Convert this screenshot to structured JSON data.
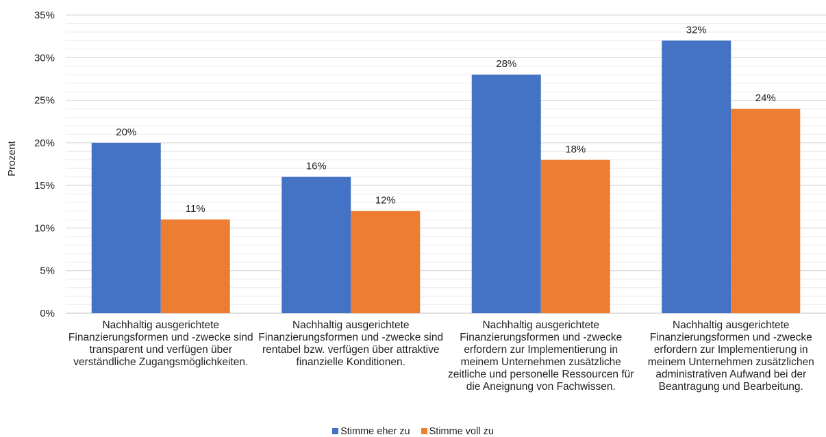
{
  "colors": {
    "series1": "#4472C4",
    "series2": "#ED7D31",
    "grid_major": "#d0d0d0",
    "grid_minor": "#ececec",
    "axis": "#bfbfbf"
  },
  "chart_data": {
    "type": "bar",
    "ylabel": "Prozent",
    "ylim": [
      0,
      35
    ],
    "yticks": [
      "0%",
      "5%",
      "10%",
      "15%",
      "20%",
      "25%",
      "30%",
      "35%"
    ],
    "grid": true,
    "legend_position": "bottom",
    "categories": [
      "Nachhaltig ausgerichtete Finanzierungsformen und -zwecke sind transparent und verfügen über verständliche Zugangsmöglichkeiten.",
      "Nachhaltig ausgerichtete Finanzierungsformen und -zwecke sind rentabel bzw. verfügen über attraktive finanzielle Konditionen.",
      "Nachhaltig ausgerichtete Finanzierungsformen und -zwecke erfordern zur Implementierung in meinem Unternehmen zusätzliche zeitliche und personelle Ressourcen für die Aneignung von Fachwissen.",
      "Nachhaltig ausgerichtete Finanzierungsformen und -zwecke erfordern zur Implementierung in meinem Unternehmen zusätzlichen administrativen Aufwand bei der Beantragung und Bearbeitung."
    ],
    "series": [
      {
        "name": "Stimme eher zu",
        "values": [
          20,
          16,
          28,
          32
        ],
        "labels": [
          "20%",
          "16%",
          "28%",
          "32%"
        ]
      },
      {
        "name": "Stimme voll zu",
        "values": [
          11,
          12,
          18,
          24
        ],
        "labels": [
          "11%",
          "12%",
          "18%",
          "24%"
        ]
      }
    ]
  }
}
